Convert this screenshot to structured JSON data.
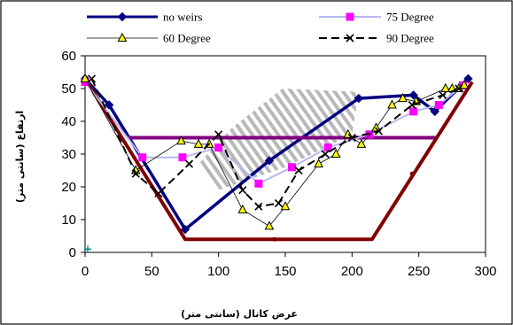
{
  "chart_data": {
    "type": "line",
    "xlabel": "عرض كانال (سانتی متر)",
    "ylabel": "ارتفاع (سانتی متر)",
    "xlim": [
      0,
      300
    ],
    "ylim": [
      0,
      60
    ],
    "x_ticks": [
      "0",
      "50",
      "100",
      "150",
      "200",
      "250",
      "300"
    ],
    "y_ticks": [
      "0",
      "10",
      "20",
      "30",
      "40",
      "50",
      "60"
    ],
    "grid": false,
    "legend_position": "top",
    "series": [
      {
        "name": "no weirs",
        "color": "#000080",
        "marker": "diamond",
        "style": "solid-thick",
        "x": [
          0,
          18,
          75,
          138,
          205,
          246,
          262,
          287
        ],
        "y": [
          53,
          45,
          7,
          28,
          47,
          48,
          43,
          53
        ]
      },
      {
        "name": "75 Degree",
        "color": "#b8b8f0",
        "marker": "square",
        "markerColor": "#ff00ff",
        "style": "solid",
        "x": [
          0,
          43,
          73,
          100,
          130,
          155,
          182,
          213,
          246,
          265,
          283
        ],
        "y": [
          52,
          29,
          29,
          32,
          21,
          26,
          32,
          36,
          43,
          45,
          51
        ]
      },
      {
        "name": "60 Degree",
        "color": "#000000",
        "marker": "triangle",
        "markerColor": "#ffff00",
        "style": "thin",
        "x": [
          0,
          38,
          72,
          85,
          93,
          118,
          138,
          150,
          175,
          188,
          197,
          207,
          218,
          230,
          238,
          248,
          270,
          275,
          280,
          284
        ],
        "y": [
          53,
          25,
          34,
          33,
          33,
          13,
          8,
          14,
          27,
          30,
          36,
          33,
          38,
          45,
          47,
          46,
          50,
          50,
          50,
          51
        ]
      },
      {
        "name": "90 Degree",
        "color": "#000000",
        "marker": "x",
        "style": "dashed",
        "x": [
          5,
          38,
          55,
          78,
          100,
          118,
          130,
          145,
          160,
          180,
          200,
          220,
          245,
          268,
          280
        ],
        "y": [
          53,
          24,
          18,
          27,
          36,
          19,
          14,
          15,
          25,
          30,
          35,
          37,
          45,
          48,
          50
        ]
      },
      {
        "name": "",
        "color": "#800000",
        "marker": "none",
        "style": "channel",
        "x": [
          0,
          75,
          215,
          290
        ],
        "y": [
          53,
          4,
          4,
          52
        ]
      },
      {
        "name": "",
        "color": "#800080",
        "marker": "none",
        "style": "water",
        "x": [
          32,
          264
        ],
        "y": [
          35,
          35
        ]
      },
      {
        "name": "",
        "color": "#008080",
        "marker": "plus",
        "style": "point",
        "x": [
          2
        ],
        "y": [
          1
        ]
      }
    ],
    "hatch_region": {
      "x": [
        85,
        110,
        148,
        205,
        200,
        150,
        100
      ],
      "y": [
        27,
        38,
        50,
        49,
        36,
        26,
        19
      ]
    }
  }
}
